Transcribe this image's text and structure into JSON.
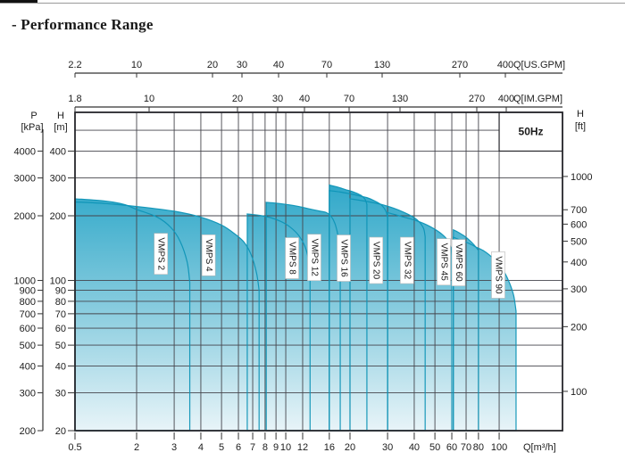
{
  "page": {
    "title": "- Performance Range"
  },
  "chart_data": {
    "type": "area",
    "title": "Performance Range",
    "frequency_label": "50Hz",
    "x_axes": {
      "us_gpm": {
        "label": "Q[US.GPM]",
        "ticks": [
          "2.2",
          "10",
          "20",
          "30",
          "40",
          "70",
          "130",
          "270",
          "400"
        ]
      },
      "im_gpm": {
        "label": "Q[IM.GPM]",
        "ticks": [
          "1.8",
          "10",
          "20",
          "30",
          "40",
          "70",
          "130",
          "270",
          "400"
        ]
      },
      "m3h": {
        "label": "Q[m³/h]",
        "ticks": [
          "0.5",
          "2",
          "3",
          "4",
          "5",
          "6",
          "7",
          "8",
          "9",
          "10",
          "12",
          "16",
          "20",
          "30",
          "40",
          "50",
          "60",
          "70",
          "80",
          "100"
        ]
      }
    },
    "y_axes": {
      "pressure_kpa": {
        "header": "P",
        "unit": "[kPa]",
        "ticks": [
          4000,
          3000,
          2000,
          1000,
          900,
          800,
          700,
          600,
          500,
          400,
          300,
          200
        ]
      },
      "head_m": {
        "header": "H",
        "unit": "[m]",
        "ticks": [
          400,
          300,
          200,
          100,
          90,
          80,
          70,
          60,
          50,
          40,
          30,
          20
        ],
        "unlabeled_gridlines": [
          500
        ]
      },
      "head_ft": {
        "header": "H",
        "unit": "[ft]",
        "ticks": [
          1000,
          700,
          600,
          500,
          400,
          300,
          200,
          100
        ]
      }
    },
    "axis_ranges": {
      "q_m3h": [
        0.5,
        120
      ],
      "head_m": [
        20,
        600
      ]
    },
    "grid": true,
    "colors": {
      "fill_top": "#2BA6C8",
      "fill_mid": "#85CBDE",
      "fill_bottom": "#E8F4F8",
      "region_edge": "#0E93B6",
      "grid_line": "#45454C",
      "border": "#26262B",
      "text": "#1C1C1C"
    },
    "series": [
      {
        "name": "VMPS 2",
        "q_start": 0.5,
        "q_end": 3.55,
        "label_q": 2.6,
        "label_h": 133,
        "curve": [
          [
            0.5,
            240
          ],
          [
            1,
            234
          ],
          [
            1.5,
            226
          ],
          [
            2,
            214
          ],
          [
            2.5,
            197
          ],
          [
            2.9,
            176
          ],
          [
            3.2,
            152
          ],
          [
            3.45,
            122
          ],
          [
            3.55,
            98
          ]
        ]
      },
      {
        "name": "VMPS 4",
        "q_start": 0.5,
        "q_end": 7.5,
        "label_q": 4.35,
        "label_h": 131,
        "curve": [
          [
            0.5,
            232
          ],
          [
            1,
            228
          ],
          [
            2,
            221
          ],
          [
            3,
            210
          ],
          [
            4,
            197
          ],
          [
            5,
            181
          ],
          [
            5.8,
            164
          ],
          [
            6.4,
            150
          ],
          [
            6.9,
            131
          ],
          [
            7.3,
            108
          ],
          [
            7.5,
            90
          ]
        ]
      },
      {
        "name": "VMPS 8",
        "q_start": 6.6,
        "q_end": 13,
        "label_q": 10.7,
        "label_h": 127,
        "curve": [
          [
            6.6,
            204
          ],
          [
            7.5,
            201
          ],
          [
            8.5,
            196
          ],
          [
            9.5,
            188
          ],
          [
            10.5,
            177
          ],
          [
            11.5,
            162
          ],
          [
            12.3,
            144
          ],
          [
            12.8,
            124
          ],
          [
            13,
            104
          ]
        ]
      },
      {
        "name": "VMPS 12",
        "q_start": 8.1,
        "q_end": 18,
        "label_q": 13.6,
        "label_h": 128,
        "curve": [
          [
            8.1,
            231
          ],
          [
            9,
            229
          ],
          [
            10,
            226
          ],
          [
            11.5,
            221
          ],
          [
            13,
            215
          ],
          [
            14.5,
            210
          ],
          [
            15.5,
            207
          ],
          [
            16.3,
            199
          ],
          [
            17,
            184
          ],
          [
            17.6,
            160
          ],
          [
            18,
            130
          ]
        ]
      },
      {
        "name": "VMPS 16",
        "q_start": 16,
        "q_end": 24,
        "label_q": 18.7,
        "label_h": 127,
        "curve": [
          [
            16,
            278
          ],
          [
            17.5,
            272
          ],
          [
            19,
            265
          ],
          [
            21,
            257
          ],
          [
            22.5,
            249
          ],
          [
            23.5,
            239
          ],
          [
            24,
            226
          ]
        ]
      },
      {
        "name": "VMPS 20",
        "q_start": 16,
        "q_end": 30,
        "label_q": 26.5,
        "label_h": 124,
        "curve": [
          [
            16,
            262
          ],
          [
            18,
            258
          ],
          [
            20,
            253
          ],
          [
            22,
            248
          ],
          [
            24,
            243
          ],
          [
            26,
            235
          ],
          [
            28,
            225
          ],
          [
            29.4,
            211
          ],
          [
            30,
            196
          ]
        ]
      },
      {
        "name": "VMPS 32",
        "q_start": 20,
        "q_end": 45,
        "label_q": 37,
        "label_h": 124,
        "curve": [
          [
            20,
            240
          ],
          [
            24,
            233
          ],
          [
            28,
            226
          ],
          [
            32,
            217
          ],
          [
            36,
            207
          ],
          [
            40,
            196
          ],
          [
            42.5,
            186
          ],
          [
            44.3,
            174
          ],
          [
            45,
            160
          ]
        ]
      },
      {
        "name": "VMPS 45",
        "q_start": 30,
        "q_end": 60,
        "label_q": 55,
        "label_h": 122,
        "curve": [
          [
            30,
            207
          ],
          [
            34,
            200
          ],
          [
            38,
            194
          ],
          [
            42,
            188
          ],
          [
            46,
            181
          ],
          [
            50,
            173
          ],
          [
            54,
            164
          ],
          [
            57,
            155
          ],
          [
            59.3,
            143
          ],
          [
            60,
            130
          ]
        ]
      },
      {
        "name": "VMPS 60",
        "q_start": 61,
        "q_end": 80,
        "label_q": 64.5,
        "label_h": 121,
        "curve": [
          [
            61,
            172
          ],
          [
            64,
            168
          ],
          [
            68,
            162
          ],
          [
            72,
            155
          ],
          [
            76,
            147
          ],
          [
            80,
            138
          ]
        ]
      },
      {
        "name": "VMPS 90",
        "q_start": 61,
        "q_end": 120,
        "label_q": 99,
        "label_h": 106,
        "curve": [
          [
            61,
            159
          ],
          [
            66,
            154
          ],
          [
            72,
            149
          ],
          [
            78,
            143
          ],
          [
            85,
            137
          ],
          [
            92,
            129
          ],
          [
            100,
            119
          ],
          [
            106,
            109
          ],
          [
            112,
            97
          ],
          [
            117,
            85
          ],
          [
            120,
            72
          ]
        ]
      }
    ]
  }
}
